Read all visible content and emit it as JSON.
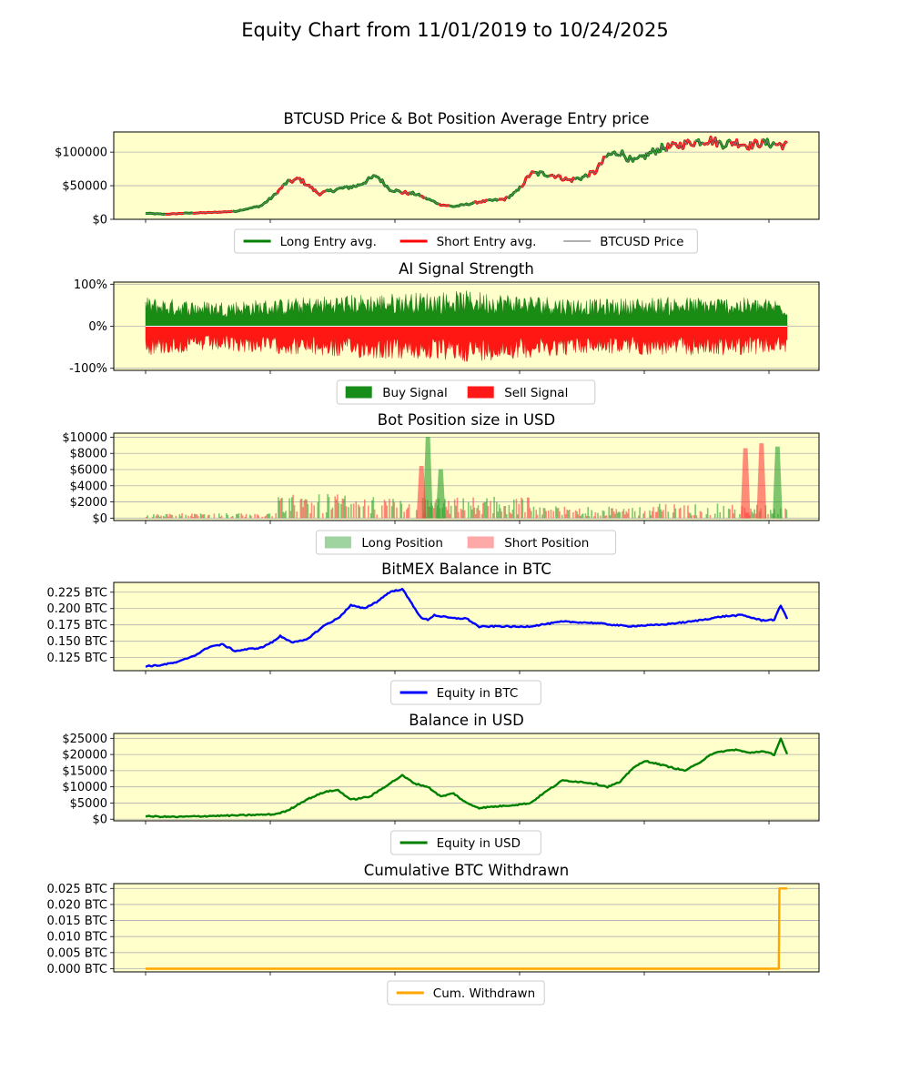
{
  "figure": {
    "title": "Equity Chart from 11/01/2019 to 10/24/2025",
    "background": "#ffffff",
    "axes_facecolor": "#ffffcc"
  },
  "chart_data": [
    {
      "id": "price",
      "type": "line",
      "title": "BTCUSD Price & Bot Position Average Entry price",
      "ylim": [
        0,
        130000
      ],
      "yticks": [
        0,
        50000,
        100000
      ],
      "ytick_labels": [
        "$0",
        "$50000",
        "$100000"
      ],
      "grid": "horizontal",
      "legend_placement": "below",
      "legend_columns": 3,
      "series": [
        {
          "name": "Long Entry avg.",
          "color": "#008000",
          "style": "thick line"
        },
        {
          "name": "Short Entry avg.",
          "color": "#ff0000",
          "style": "thick line"
        },
        {
          "name": "BTCUSD Price",
          "color": "#808080",
          "style": "thin line"
        }
      ],
      "x": [
        0,
        0.03,
        0.06,
        0.1,
        0.14,
        0.18,
        0.2,
        0.22,
        0.24,
        0.27,
        0.3,
        0.33,
        0.36,
        0.38,
        0.4,
        0.42,
        0.44,
        0.46,
        0.48,
        0.5,
        0.52,
        0.54,
        0.56,
        0.58,
        0.6,
        0.62,
        0.64,
        0.66,
        0.68,
        0.7,
        0.72,
        0.74,
        0.76,
        0.78,
        0.8,
        0.82,
        0.84,
        0.86,
        0.88,
        0.9,
        0.92,
        0.94,
        0.96,
        0.98,
        1.0
      ],
      "values": [
        9000,
        7500,
        9000,
        10000,
        12000,
        20000,
        35000,
        55000,
        60000,
        38000,
        45000,
        50000,
        65000,
        45000,
        40000,
        38000,
        30000,
        22000,
        19000,
        22000,
        26000,
        28000,
        30000,
        42000,
        68000,
        68000,
        65000,
        58000,
        62000,
        70000,
        95000,
        100000,
        85000,
        95000,
        105000,
        108000,
        112000,
        116000,
        118000,
        112000,
        115000,
        110000,
        114000,
        112000,
        110000
      ]
    },
    {
      "id": "signal",
      "type": "area",
      "title": "AI Signal Strength",
      "ylim": [
        -105,
        105
      ],
      "yticks": [
        -100,
        0,
        100
      ],
      "ytick_labels": [
        "-100%",
        "0%",
        "100%"
      ],
      "grid": "horizontal",
      "legend_placement": "below",
      "legend_columns": 2,
      "series": [
        {
          "name": "Buy Signal",
          "color": "#008000",
          "sign": 1
        },
        {
          "name": "Sell Signal",
          "color": "#ff0000",
          "sign": -1
        }
      ],
      "note": "dense alternating signals oscillating mostly between 20% and 95% in magnitude",
      "x": [
        0,
        0.1,
        0.2,
        0.3,
        0.4,
        0.5,
        0.6,
        0.7,
        0.8,
        0.9,
        1.0
      ],
      "values": [
        70,
        60,
        65,
        75,
        80,
        85,
        75,
        65,
        70,
        70,
        65
      ]
    },
    {
      "id": "position",
      "type": "area",
      "title": "Bot Position size in USD",
      "ylim": [
        -300,
        10500
      ],
      "yticks": [
        0,
        2000,
        4000,
        6000,
        8000,
        10000
      ],
      "ytick_labels": [
        "$0",
        "$2000",
        "$4000",
        "$6000",
        "$8000",
        "$10000"
      ],
      "grid": "horizontal",
      "legend_placement": "below",
      "legend_columns": 2,
      "series": [
        {
          "name": "Long Position",
          "color": "#2ca02c"
        },
        {
          "name": "Short Position",
          "color": "#ff4040"
        }
      ],
      "spikes": [
        {
          "x": 0.44,
          "value": 10000,
          "side": "long"
        },
        {
          "x": 0.46,
          "value": 6000,
          "side": "long"
        },
        {
          "x": 0.43,
          "value": 6400,
          "side": "short"
        },
        {
          "x": 0.96,
          "value": 9200,
          "side": "short"
        },
        {
          "x": 0.985,
          "value": 8800,
          "side": "long"
        },
        {
          "x": 0.935,
          "value": 8600,
          "side": "short"
        }
      ]
    },
    {
      "id": "btc_balance",
      "type": "line",
      "title": "BitMEX Balance in BTC",
      "ylim": [
        0.105,
        0.24
      ],
      "yticks": [
        0.125,
        0.15,
        0.175,
        0.2,
        0.225
      ],
      "ytick_labels": [
        "0.125 BTC",
        "0.150 BTC",
        "0.175 BTC",
        "0.200 BTC",
        "0.225 BTC"
      ],
      "grid": "horizontal",
      "legend_placement": "below",
      "series": [
        {
          "name": "Equity in BTC",
          "color": "#0000ff"
        }
      ],
      "x": [
        0,
        0.02,
        0.05,
        0.08,
        0.1,
        0.12,
        0.14,
        0.16,
        0.18,
        0.2,
        0.21,
        0.23,
        0.25,
        0.28,
        0.3,
        0.32,
        0.34,
        0.36,
        0.38,
        0.4,
        0.42,
        0.43,
        0.44,
        0.45,
        0.46,
        0.48,
        0.5,
        0.52,
        0.55,
        0.58,
        0.6,
        0.65,
        0.7,
        0.75,
        0.8,
        0.85,
        0.9,
        0.93,
        0.96,
        0.98,
        0.99,
        1.0
      ],
      "values": [
        0.112,
        0.113,
        0.118,
        0.13,
        0.142,
        0.145,
        0.135,
        0.138,
        0.14,
        0.15,
        0.158,
        0.148,
        0.152,
        0.175,
        0.185,
        0.205,
        0.2,
        0.21,
        0.225,
        0.23,
        0.2,
        0.185,
        0.183,
        0.19,
        0.188,
        0.185,
        0.185,
        0.172,
        0.173,
        0.172,
        0.173,
        0.18,
        0.178,
        0.173,
        0.175,
        0.18,
        0.188,
        0.19,
        0.182,
        0.183,
        0.205,
        0.185
      ]
    },
    {
      "id": "usd_balance",
      "type": "line",
      "title": "Balance in USD",
      "ylim": [
        -500,
        26500
      ],
      "yticks": [
        0,
        5000,
        10000,
        15000,
        20000,
        25000
      ],
      "ytick_labels": [
        "$0",
        "$5000",
        "$10000",
        "$15000",
        "$20000",
        "$25000"
      ],
      "grid": "horizontal",
      "legend_placement": "below",
      "series": [
        {
          "name": "Equity in USD",
          "color": "#008000"
        }
      ],
      "x": [
        0,
        0.05,
        0.1,
        0.15,
        0.2,
        0.22,
        0.25,
        0.28,
        0.3,
        0.32,
        0.35,
        0.38,
        0.4,
        0.42,
        0.44,
        0.46,
        0.48,
        0.5,
        0.52,
        0.55,
        0.58,
        0.6,
        0.62,
        0.65,
        0.68,
        0.7,
        0.72,
        0.74,
        0.76,
        0.78,
        0.8,
        0.82,
        0.84,
        0.86,
        0.88,
        0.9,
        0.92,
        0.94,
        0.96,
        0.98,
        0.99,
        1.0
      ],
      "values": [
        900,
        700,
        1000,
        1200,
        1500,
        2500,
        6000,
        8500,
        9000,
        6000,
        7000,
        11000,
        13500,
        11000,
        10000,
        7000,
        8000,
        5000,
        3500,
        4000,
        4500,
        5000,
        8000,
        12000,
        11500,
        11000,
        10000,
        11500,
        16000,
        18000,
        17000,
        16000,
        15000,
        17000,
        20000,
        21000,
        21500,
        20500,
        21000,
        20000,
        25000,
        20000
      ]
    },
    {
      "id": "withdrawn",
      "type": "line",
      "title": "Cumulative BTC Withdrawn",
      "ylim": [
        -0.001,
        0.0265
      ],
      "yticks": [
        0,
        0.005,
        0.01,
        0.015,
        0.02,
        0.025
      ],
      "ytick_labels": [
        "0.000 BTC",
        "0.005 BTC",
        "0.010 BTC",
        "0.015 BTC",
        "0.020 BTC",
        "0.025 BTC"
      ],
      "grid": "horizontal",
      "legend_placement": "below",
      "series": [
        {
          "name": "Cum. Withdrawn",
          "color": "#ffa500"
        }
      ],
      "x": [
        0,
        0.987,
        0.988,
        1.0
      ],
      "values": [
        0,
        0,
        0.025,
        0.025
      ]
    }
  ]
}
